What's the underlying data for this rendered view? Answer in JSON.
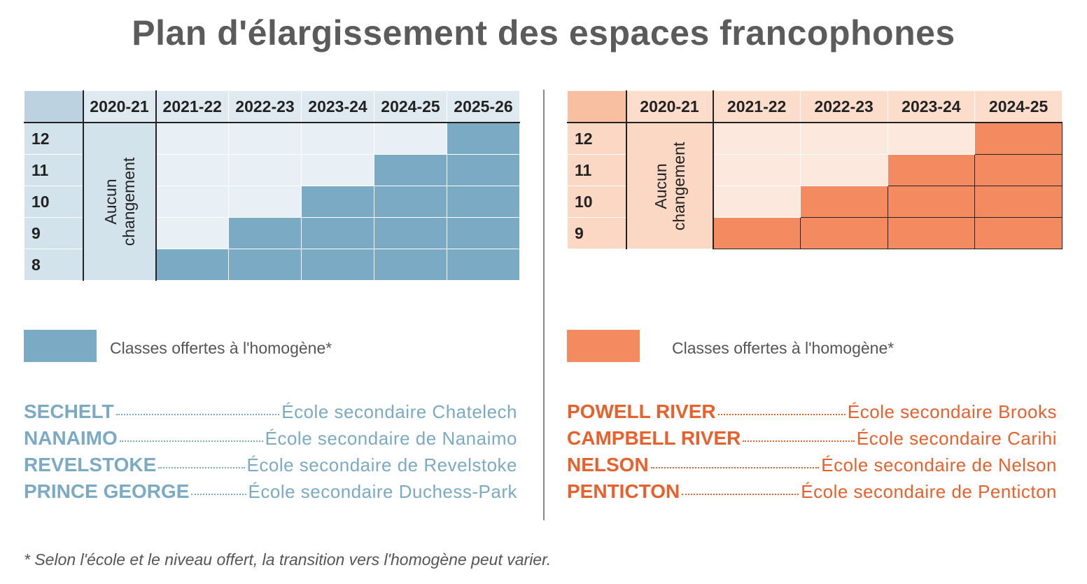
{
  "title": "Plan d'élargissement des espaces francophones",
  "colors": {
    "blue_fill": "#7aaac4",
    "orange_fill": "#f48b60",
    "blue_text": "#7aaac4",
    "orange_text": "#e8602c"
  },
  "blue": {
    "years": [
      "2020-21",
      "2021-22",
      "2022-23",
      "2023-24",
      "2024-25",
      "2025-26"
    ],
    "no_change_line1": "Aucun",
    "no_change_line2": "changement",
    "rows": [
      {
        "grade": "12",
        "filled_from_year": "2025-26"
      },
      {
        "grade": "11",
        "filled_from_year": "2024-25"
      },
      {
        "grade": "10",
        "filled_from_year": "2023-24"
      },
      {
        "grade": "9",
        "filled_from_year": "2022-23"
      },
      {
        "grade": "8",
        "filled_from_year": "2021-22"
      }
    ],
    "legend": "Classes offertes à l'homogène*",
    "schools": [
      {
        "city": "SECHELT",
        "school": "École secondaire Chatelech"
      },
      {
        "city": "NANAIMO",
        "school": "École secondaire de Nanaimo"
      },
      {
        "city": "REVELSTOKE",
        "school": "École secondaire de Revelstoke"
      },
      {
        "city": "PRINCE GEORGE",
        "school": "École secondaire Duchess-Park"
      }
    ]
  },
  "orange": {
    "years": [
      "2020-21",
      "2021-22",
      "2022-23",
      "2023-24",
      "2024-25"
    ],
    "no_change_line1": "Aucun",
    "no_change_line2": "changement",
    "rows": [
      {
        "grade": "12",
        "filled_from_year": "2024-25"
      },
      {
        "grade": "11",
        "filled_from_year": "2023-24"
      },
      {
        "grade": "10",
        "filled_from_year": "2022-23"
      },
      {
        "grade": "9",
        "filled_from_year": "2021-22"
      }
    ],
    "legend": "Classes offertes à l'homogène*",
    "schools": [
      {
        "city": "POWELL RIVER",
        "school": "École secondaire Brooks"
      },
      {
        "city": "CAMPBELL RIVER",
        "school": "École secondaire Carihi"
      },
      {
        "city": "NELSON",
        "school": "École secondaire de Nelson"
      },
      {
        "city": "PENTICTON",
        "school": "École secondaire de Penticton"
      }
    ]
  },
  "footnote": "* Selon l'école et le niveau offert, la transition vers l'homogène peut varier."
}
